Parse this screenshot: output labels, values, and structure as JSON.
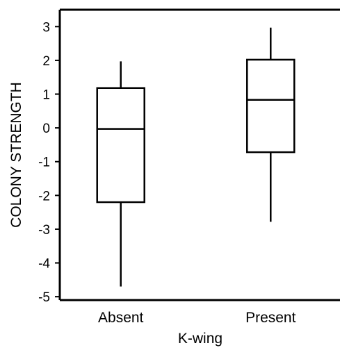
{
  "chart_data": {
    "type": "box",
    "title": "",
    "xlabel": "K-wing",
    "ylabel": "COLONY STRENGTH",
    "ylim": [
      -5.1,
      3.5
    ],
    "yticks": [
      3,
      2,
      1,
      0,
      -1,
      -2,
      -3,
      -4,
      -5
    ],
    "grid": false,
    "categories": [
      "Absent",
      "Present"
    ],
    "boxes": [
      {
        "category": "Absent",
        "min": -4.7,
        "q1": -2.2,
        "median": -0.03,
        "q3": 1.18,
        "max": 1.97
      },
      {
        "category": "Present",
        "min": -2.78,
        "q1": -0.72,
        "median": 0.83,
        "q3": 2.02,
        "max": 2.97
      }
    ],
    "colors": {
      "stroke": "#000000",
      "fill": "#ffffff"
    }
  }
}
